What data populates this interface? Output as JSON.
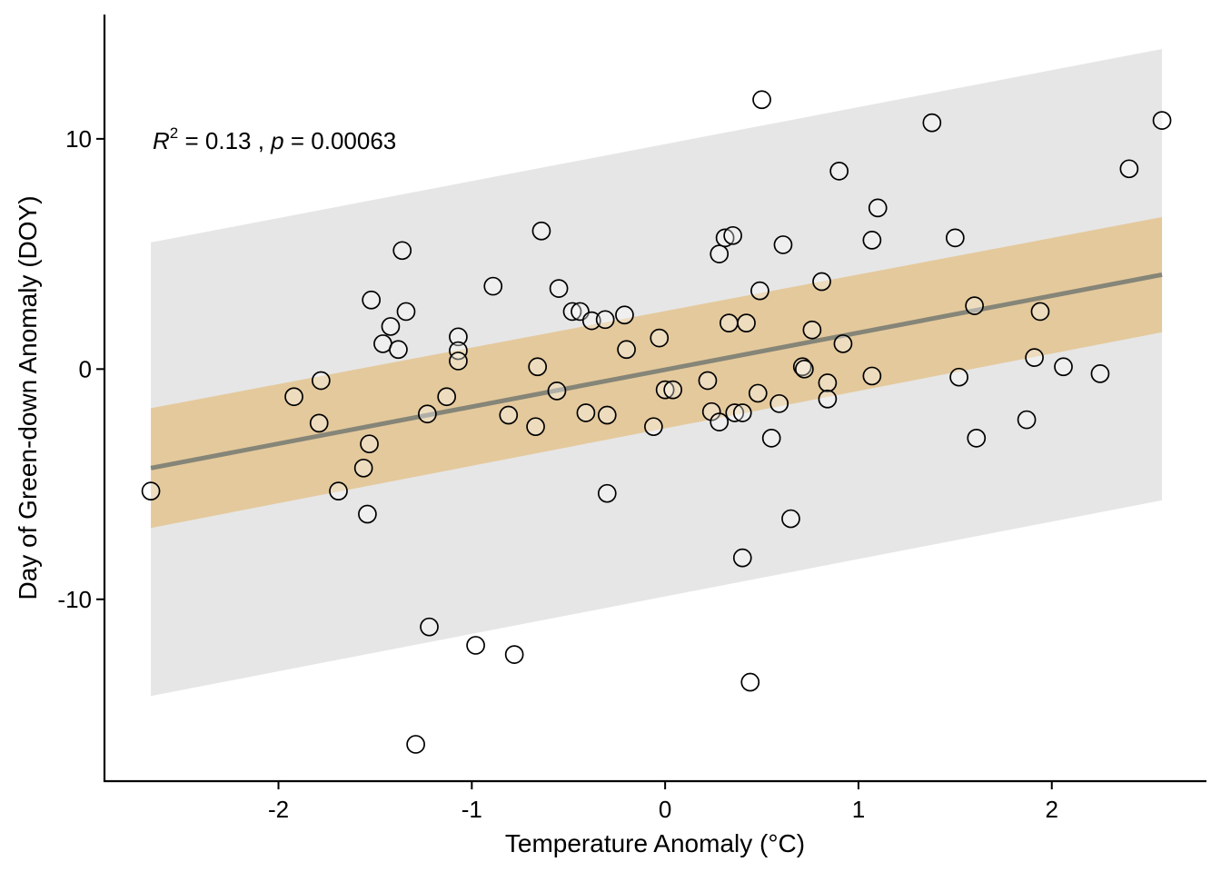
{
  "chart_data": {
    "type": "scatter",
    "title": "",
    "xlabel": "Temperature Anomaly (°C)",
    "ylabel": "Day of Green-down Anomaly (DOY)",
    "xlim": [
      -2.9,
      2.8
    ],
    "ylim": [
      -17.9,
      15.4
    ],
    "x_ticks": [
      -2,
      -1,
      0,
      1,
      2
    ],
    "x_tick_labels": [
      "-2",
      "-1",
      "0",
      "1",
      "2"
    ],
    "y_ticks": [
      -10,
      0,
      10
    ],
    "y_tick_labels": [
      "-10",
      "0",
      "10"
    ],
    "annotation": {
      "r2_symbol": "R",
      "r2_exp": "2",
      "r2_text": " = 0.13 , ",
      "p_symbol": "p",
      "p_text": " = 0.00063"
    },
    "regression": {
      "x_start": -2.66,
      "x_end": 2.57,
      "y_start": -4.3,
      "y_end": 4.1
    },
    "confidence_band": {
      "x": [
        -2.66,
        2.57
      ],
      "lower": [
        -6.9,
        1.6
      ],
      "upper": [
        -1.7,
        6.6
      ]
    },
    "prediction_band": {
      "x": [
        -2.66,
        2.57
      ],
      "lower": [
        -14.2,
        -5.7
      ],
      "upper": [
        5.5,
        13.9
      ]
    },
    "colors": {
      "points_stroke": "#000000",
      "points_fill": "#ffffff",
      "regression_line": "#858578",
      "confidence_fill": "#e3c28a",
      "prediction_fill": "#e6e6e6"
    },
    "points": [
      {
        "x": -2.66,
        "y": -5.3
      },
      {
        "x": -1.92,
        "y": -1.2
      },
      {
        "x": -1.79,
        "y": -2.35
      },
      {
        "x": -1.78,
        "y": -0.5
      },
      {
        "x": -1.69,
        "y": -5.3
      },
      {
        "x": -1.56,
        "y": -4.3
      },
      {
        "x": -1.54,
        "y": -6.3
      },
      {
        "x": -1.53,
        "y": -3.25
      },
      {
        "x": -1.52,
        "y": 3.0
      },
      {
        "x": -1.46,
        "y": 1.1
      },
      {
        "x": -1.42,
        "y": 1.85
      },
      {
        "x": -1.38,
        "y": 0.85
      },
      {
        "x": -1.36,
        "y": 5.15
      },
      {
        "x": -1.34,
        "y": 2.5
      },
      {
        "x": -1.29,
        "y": -16.3
      },
      {
        "x": -1.23,
        "y": -1.95
      },
      {
        "x": -1.22,
        "y": -11.2
      },
      {
        "x": -1.13,
        "y": -1.2
      },
      {
        "x": -1.07,
        "y": 1.4
      },
      {
        "x": -1.07,
        "y": 0.8
      },
      {
        "x": -1.07,
        "y": 0.35
      },
      {
        "x": -0.98,
        "y": -12.0
      },
      {
        "x": -0.89,
        "y": 3.6
      },
      {
        "x": -0.81,
        "y": -2.0
      },
      {
        "x": -0.78,
        "y": -12.4
      },
      {
        "x": -0.67,
        "y": -2.5
      },
      {
        "x": -0.66,
        "y": 0.1
      },
      {
        "x": -0.64,
        "y": 6.0
      },
      {
        "x": -0.56,
        "y": -0.95
      },
      {
        "x": -0.55,
        "y": 3.5
      },
      {
        "x": -0.48,
        "y": 2.5
      },
      {
        "x": -0.44,
        "y": 2.5
      },
      {
        "x": -0.41,
        "y": -1.9
      },
      {
        "x": -0.38,
        "y": 2.1
      },
      {
        "x": -0.31,
        "y": 2.15
      },
      {
        "x": -0.3,
        "y": -2.0
      },
      {
        "x": -0.3,
        "y": -5.4
      },
      {
        "x": -0.21,
        "y": 2.35
      },
      {
        "x": -0.2,
        "y": 0.85
      },
      {
        "x": -0.06,
        "y": -2.5
      },
      {
        "x": -0.03,
        "y": 1.35
      },
      {
        "x": 0.0,
        "y": -0.9
      },
      {
        "x": 0.04,
        "y": -0.9
      },
      {
        "x": 0.22,
        "y": -0.5
      },
      {
        "x": 0.24,
        "y": -1.85
      },
      {
        "x": 0.28,
        "y": -2.3
      },
      {
        "x": 0.28,
        "y": 5.0
      },
      {
        "x": 0.31,
        "y": 5.7
      },
      {
        "x": 0.33,
        "y": 2.0
      },
      {
        "x": 0.35,
        "y": 5.8
      },
      {
        "x": 0.36,
        "y": -1.9
      },
      {
        "x": 0.4,
        "y": -1.9
      },
      {
        "x": 0.4,
        "y": -8.2
      },
      {
        "x": 0.42,
        "y": 2.0
      },
      {
        "x": 0.44,
        "y": -13.6
      },
      {
        "x": 0.48,
        "y": -1.05
      },
      {
        "x": 0.49,
        "y": 3.4
      },
      {
        "x": 0.5,
        "y": 11.7
      },
      {
        "x": 0.55,
        "y": -3.0
      },
      {
        "x": 0.59,
        "y": -1.5
      },
      {
        "x": 0.61,
        "y": 5.4
      },
      {
        "x": 0.65,
        "y": -6.5
      },
      {
        "x": 0.71,
        "y": 0.1
      },
      {
        "x": 0.72,
        "y": 0.0
      },
      {
        "x": 0.76,
        "y": 1.7
      },
      {
        "x": 0.81,
        "y": 3.8
      },
      {
        "x": 0.84,
        "y": -0.6
      },
      {
        "x": 0.84,
        "y": -1.3
      },
      {
        "x": 0.9,
        "y": 8.6
      },
      {
        "x": 0.92,
        "y": 1.1
      },
      {
        "x": 1.07,
        "y": 5.6
      },
      {
        "x": 1.07,
        "y": -0.3
      },
      {
        "x": 1.1,
        "y": 7.0
      },
      {
        "x": 1.38,
        "y": 10.7
      },
      {
        "x": 1.5,
        "y": 5.7
      },
      {
        "x": 1.52,
        "y": -0.35
      },
      {
        "x": 1.6,
        "y": 2.75
      },
      {
        "x": 1.61,
        "y": -3.0
      },
      {
        "x": 1.87,
        "y": -2.2
      },
      {
        "x": 1.91,
        "y": 0.5
      },
      {
        "x": 1.94,
        "y": 2.5
      },
      {
        "x": 2.06,
        "y": 0.1
      },
      {
        "x": 2.25,
        "y": -0.2
      },
      {
        "x": 2.4,
        "y": 8.7
      },
      {
        "x": 2.57,
        "y": 10.8
      }
    ]
  }
}
